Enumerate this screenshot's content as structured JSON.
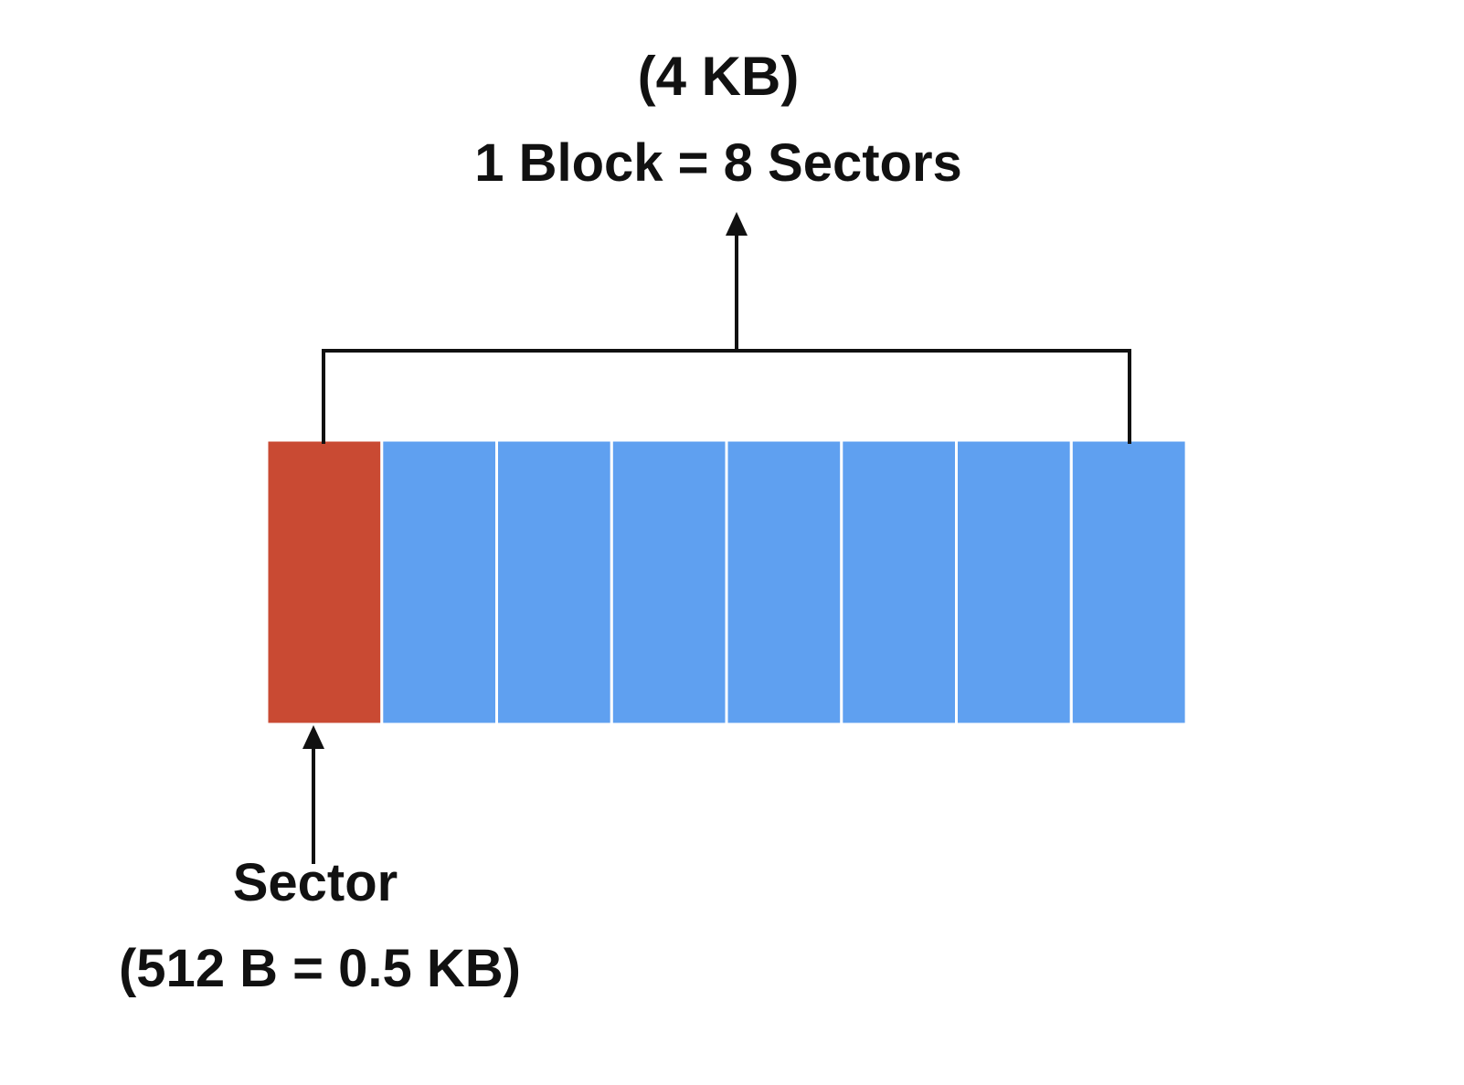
{
  "diagram": {
    "block_size_label": "(4 KB)",
    "block_definition_label": "1 Block = 8 Sectors",
    "sector_label": "Sector",
    "sector_size_label": "(512 B = 0.5 KB)",
    "sector_count": 8,
    "highlighted_sector_index": 0,
    "colors": {
      "highlighted_sector": "#c94a33",
      "sector": "#5fa0f0",
      "divider": "#ffffff",
      "line": "#111111",
      "text": "#111111"
    }
  }
}
